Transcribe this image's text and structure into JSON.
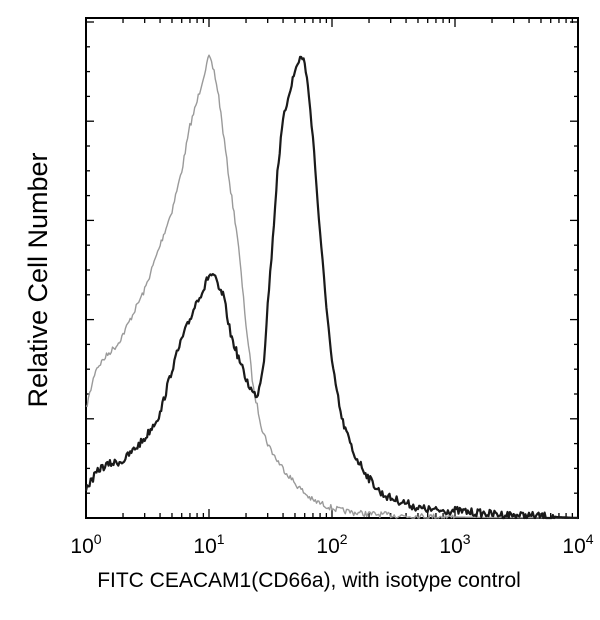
{
  "chart_data": {
    "type": "line",
    "xlabel": "FITC CEACAM1(CD66a), with isotype control",
    "ylabel": "Relative Cell Number",
    "x_scale": "log",
    "xlim": [
      1,
      10000
    ],
    "ylim": [
      0,
      100
    ],
    "x_ticks": [
      {
        "base": "10",
        "exp": "0",
        "value": 1
      },
      {
        "base": "10",
        "exp": "1",
        "value": 10
      },
      {
        "base": "10",
        "exp": "2",
        "value": 100
      },
      {
        "base": "10",
        "exp": "3",
        "value": 1000
      },
      {
        "base": "10",
        "exp": "4",
        "value": 10000
      }
    ],
    "grid": false,
    "series": [
      {
        "color": "#9a9a9a",
        "x": [
          1,
          1.2,
          1.5,
          1.8,
          2,
          2.5,
          3,
          4,
          5,
          6,
          7,
          8,
          9,
          10,
          11,
          12,
          13,
          15,
          17,
          20,
          23,
          27,
          30,
          35,
          40,
          50,
          60,
          70,
          80,
          100,
          120,
          150,
          200,
          300,
          400,
          600,
          1000,
          2000,
          10000
        ],
        "values": [
          22,
          30,
          33,
          35,
          37,
          42,
          46,
          55,
          62,
          70,
          79,
          84,
          89,
          93,
          90,
          85,
          78,
          66,
          57,
          39,
          26,
          18,
          15,
          12,
          10,
          7,
          5,
          3.5,
          3,
          2,
          1.5,
          1.1,
          0.8,
          0.6,
          0.4,
          0.3,
          0.2,
          0.1,
          0
        ]
      },
      {
        "color": "#1a1a1a",
        "x": [
          1,
          1.3,
          1.6,
          2,
          2.5,
          3,
          4,
          5,
          6,
          7,
          8,
          9,
          10,
          11,
          12,
          13,
          14,
          15,
          17,
          20,
          23,
          25,
          28,
          30,
          33,
          36,
          40,
          45,
          50,
          55,
          60,
          65,
          70,
          80,
          90,
          100,
          120,
          150,
          200,
          250,
          300,
          400,
          500,
          700,
          1000,
          1300,
          1600,
          2000,
          10000
        ],
        "values": [
          6,
          10,
          11,
          11.5,
          14,
          16,
          21,
          30,
          36,
          40,
          44,
          46,
          49,
          49,
          46,
          45,
          41,
          37,
          33,
          28,
          25,
          25,
          32,
          43,
          56,
          70,
          80,
          86,
          90,
          93,
          92,
          85,
          77,
          57,
          43,
          31,
          20,
          13,
          8,
          5,
          4,
          3,
          2,
          1.5,
          1.5,
          1.2,
          1,
          0.8,
          0
        ]
      }
    ]
  }
}
